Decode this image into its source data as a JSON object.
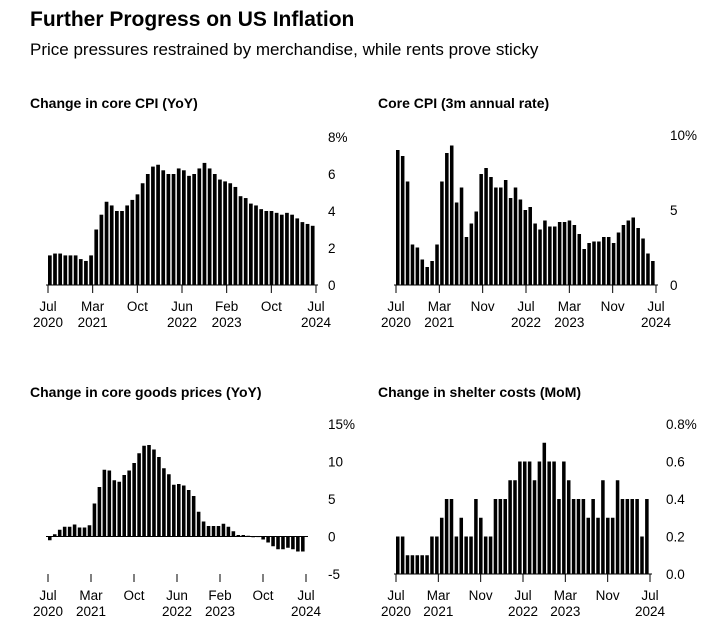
{
  "title": "Further Progress on US Inflation",
  "subtitle": "Price pressures restrained by merchandise, while rents prove sticky",
  "bar_color": "#000000",
  "chart_data": [
    {
      "type": "bar",
      "title": "Change in core CPI (YoY)",
      "x_ticks": [
        [
          "Jul",
          "2020"
        ],
        [
          "Mar",
          "2021"
        ],
        [
          "Oct",
          ""
        ],
        [
          "Jun",
          "2022"
        ],
        [
          "Feb",
          "2023"
        ],
        [
          "Oct",
          ""
        ],
        [
          "Jul",
          "2024"
        ]
      ],
      "y_ticks": [
        "8%",
        "6",
        "4",
        "2",
        "0"
      ],
      "ylim": [
        0,
        8
      ],
      "values": [
        1.6,
        1.7,
        1.7,
        1.6,
        1.6,
        1.6,
        1.4,
        1.3,
        1.6,
        3.0,
        3.8,
        4.5,
        4.3,
        4.0,
        4.0,
        4.3,
        4.6,
        4.9,
        5.5,
        6.0,
        6.4,
        6.5,
        6.2,
        6.0,
        6.0,
        6.3,
        6.2,
        5.9,
        6.0,
        6.3,
        6.6,
        6.3,
        6.0,
        5.7,
        5.6,
        5.5,
        5.3,
        4.8,
        4.7,
        4.4,
        4.3,
        4.1,
        4.0,
        4.0,
        3.9,
        3.8,
        3.9,
        3.8,
        3.6,
        3.4,
        3.3,
        3.2
      ]
    },
    {
      "type": "bar",
      "title": "Core CPI (3m annual rate)",
      "x_ticks": [
        [
          "Jul",
          "2020"
        ],
        [
          "Mar",
          "2021"
        ],
        [
          "Nov",
          ""
        ],
        [
          "Jul",
          "2022"
        ],
        [
          "Mar",
          "2023"
        ],
        [
          "Nov",
          ""
        ],
        [
          "Jul",
          "2024"
        ]
      ],
      "y_ticks": [
        "10%",
        "5",
        "0"
      ],
      "ylim": [
        0,
        10
      ],
      "values": [
        9.0,
        8.6,
        6.9,
        2.7,
        2.5,
        1.7,
        1.2,
        1.6,
        2.7,
        6.9,
        8.8,
        9.3,
        5.5,
        6.5,
        3.2,
        4.1,
        4.9,
        7.4,
        7.8,
        7.2,
        6.5,
        6.5,
        7.0,
        5.8,
        6.5,
        5.7,
        5.0,
        5.2,
        4.1,
        3.7,
        4.3,
        3.9,
        3.9,
        4.2,
        4.2,
        4.3,
        4.0,
        3.4,
        2.4,
        2.8,
        2.9,
        2.9,
        3.2,
        3.2,
        2.8,
        3.5,
        4.0,
        4.3,
        4.5,
        3.8,
        3.1,
        2.1,
        1.6
      ]
    },
    {
      "type": "bar",
      "title": "Change in core goods prices (YoY)",
      "x_ticks": [
        [
          "Jul",
          "2020"
        ],
        [
          "Mar",
          "2021"
        ],
        [
          "Oct",
          ""
        ],
        [
          "Jun",
          "2022"
        ],
        [
          "Feb",
          "2023"
        ],
        [
          "Oct",
          ""
        ],
        [
          "Jul",
          "2024"
        ]
      ],
      "y_ticks": [
        "15%",
        "10",
        "5",
        "0",
        "-5"
      ],
      "ylim": [
        -5,
        15
      ],
      "values": [
        -0.5,
        0.3,
        0.9,
        1.3,
        1.3,
        1.6,
        1.2,
        1.2,
        1.5,
        4.4,
        6.6,
        8.9,
        8.8,
        7.5,
        7.3,
        8.2,
        8.8,
        9.8,
        11.1,
        12.1,
        12.2,
        11.6,
        10.6,
        9.1,
        8.3,
        6.9,
        7.0,
        6.8,
        6.2,
        5.4,
        3.3,
        2.0,
        1.4,
        1.4,
        1.4,
        1.7,
        1.3,
        0.7,
        0.2,
        0.2,
        0.1,
        -0.1,
        0.0,
        -0.4,
        -0.8,
        -1.3,
        -1.7,
        -1.7,
        -1.5,
        -1.7,
        -2.0,
        -2.0
      ]
    },
    {
      "type": "bar",
      "title": "Change in shelter costs (MoM)",
      "x_ticks": [
        [
          "Jul",
          "2020"
        ],
        [
          "Mar",
          "2021"
        ],
        [
          "Nov",
          ""
        ],
        [
          "Jul",
          "2022"
        ],
        [
          "Mar",
          "2023"
        ],
        [
          "Nov",
          ""
        ],
        [
          "Jul",
          "2024"
        ]
      ],
      "y_ticks": [
        "0.8%",
        "0.6",
        "0.4",
        "0.2",
        "0.0"
      ],
      "ylim": [
        0,
        0.8
      ],
      "values": [
        0.2,
        0.2,
        0.1,
        0.1,
        0.1,
        0.1,
        0.1,
        0.2,
        0.2,
        0.3,
        0.4,
        0.4,
        0.2,
        0.3,
        0.2,
        0.2,
        0.4,
        0.3,
        0.2,
        0.2,
        0.4,
        0.4,
        0.4,
        0.5,
        0.5,
        0.6,
        0.6,
        0.6,
        0.5,
        0.6,
        0.7,
        0.6,
        0.6,
        0.4,
        0.6,
        0.5,
        0.4,
        0.4,
        0.4,
        0.3,
        0.4,
        0.3,
        0.5,
        0.3,
        0.3,
        0.5,
        0.4,
        0.4,
        0.4,
        0.4,
        0.2,
        0.4
      ]
    }
  ]
}
